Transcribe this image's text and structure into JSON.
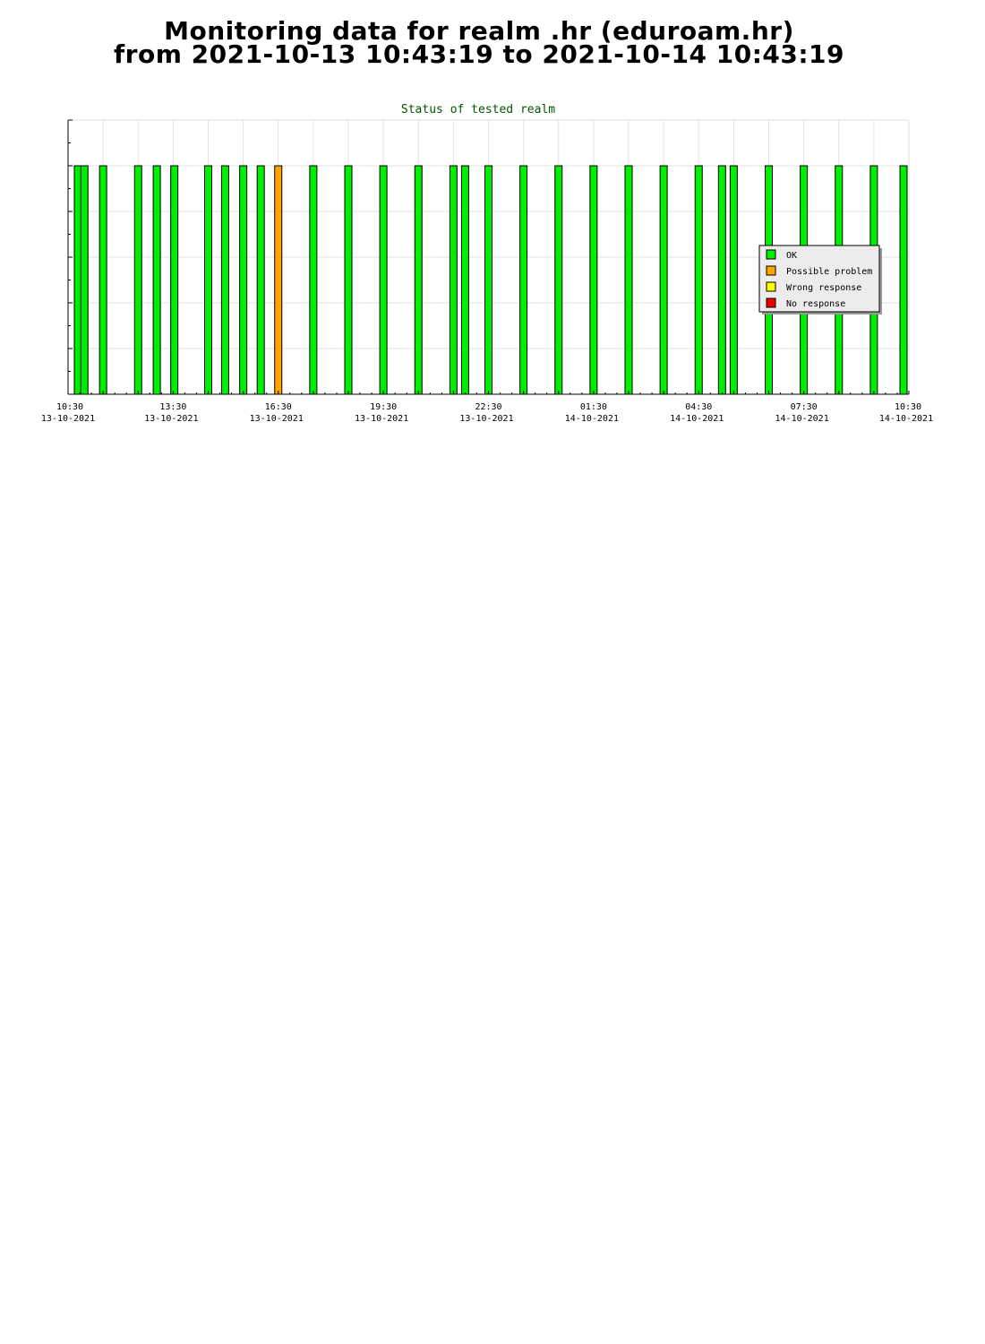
{
  "page": {
    "title_line1": "Monitoring data for realm .hr  (eduroam.hr)",
    "title_line2": "from 2021-10-13 10:43:19 to 2021-10-14 10:43:19"
  },
  "chart_data": {
    "type": "bar",
    "title": "Status of tested realm",
    "xlabel": "",
    "ylabel": "",
    "x_range": [
      "2021-10-13 10:30",
      "2021-10-14 10:30"
    ],
    "ylim": [
      0,
      1.2
    ],
    "grid": true,
    "legend_position": "right",
    "x_ticks": [
      {
        "time": "10:30",
        "date": "13-10-2021"
      },
      {
        "time": "13:30",
        "date": "13-10-2021"
      },
      {
        "time": "16:30",
        "date": "13-10-2021"
      },
      {
        "time": "19:30",
        "date": "13-10-2021"
      },
      {
        "time": "22:30",
        "date": "13-10-2021"
      },
      {
        "time": "01:30",
        "date": "14-10-2021"
      },
      {
        "time": "04:30",
        "date": "14-10-2021"
      },
      {
        "time": "07:30",
        "date": "14-10-2021"
      },
      {
        "time": "10:30",
        "date": "14-10-2021"
      }
    ],
    "legend": [
      {
        "label": "OK",
        "color": "#00ee00"
      },
      {
        "label": "Possible problem",
        "color": "#ffa500"
      },
      {
        "label": "Wrong response",
        "color": "#ffff00"
      },
      {
        "label": "No response",
        "color": "#ee0000"
      }
    ],
    "bars": [
      {
        "time": "2021-10-13 10:43",
        "status": "OK",
        "value": 1
      },
      {
        "time": "2021-10-13 10:58",
        "status": "OK",
        "value": 1
      },
      {
        "time": "2021-10-13 11:30",
        "status": "OK",
        "value": 1
      },
      {
        "time": "2021-10-13 12:30",
        "status": "OK",
        "value": 1
      },
      {
        "time": "2021-10-13 13:02",
        "status": "OK",
        "value": 1
      },
      {
        "time": "2021-10-13 13:32",
        "status": "OK",
        "value": 1
      },
      {
        "time": "2021-10-13 14:30",
        "status": "OK",
        "value": 1
      },
      {
        "time": "2021-10-13 14:59",
        "status": "OK",
        "value": 1
      },
      {
        "time": "2021-10-13 15:30",
        "status": "OK",
        "value": 1
      },
      {
        "time": "2021-10-13 16:00",
        "status": "OK",
        "value": 1
      },
      {
        "time": "2021-10-13 16:30",
        "status": "Possible problem",
        "value": 1
      },
      {
        "time": "2021-10-13 17:30",
        "status": "OK",
        "value": 1
      },
      {
        "time": "2021-10-13 18:30",
        "status": "OK",
        "value": 1
      },
      {
        "time": "2021-10-13 19:30",
        "status": "OK",
        "value": 1
      },
      {
        "time": "2021-10-13 20:30",
        "status": "OK",
        "value": 1
      },
      {
        "time": "2021-10-13 21:30",
        "status": "OK",
        "value": 1
      },
      {
        "time": "2021-10-13 21:50",
        "status": "OK",
        "value": 1
      },
      {
        "time": "2021-10-13 22:30",
        "status": "OK",
        "value": 1
      },
      {
        "time": "2021-10-13 23:30",
        "status": "OK",
        "value": 1
      },
      {
        "time": "2021-10-14 00:30",
        "status": "OK",
        "value": 1
      },
      {
        "time": "2021-10-14 01:30",
        "status": "OK",
        "value": 1
      },
      {
        "time": "2021-10-14 02:30",
        "status": "OK",
        "value": 1
      },
      {
        "time": "2021-10-14 03:30",
        "status": "OK",
        "value": 1
      },
      {
        "time": "2021-10-14 04:30",
        "status": "OK",
        "value": 1
      },
      {
        "time": "2021-10-14 05:10",
        "status": "OK",
        "value": 1
      },
      {
        "time": "2021-10-14 05:30",
        "status": "OK",
        "value": 1
      },
      {
        "time": "2021-10-14 06:30",
        "status": "OK",
        "value": 1
      },
      {
        "time": "2021-10-14 07:30",
        "status": "OK",
        "value": 1
      },
      {
        "time": "2021-10-14 08:30",
        "status": "OK",
        "value": 1
      },
      {
        "time": "2021-10-14 09:30",
        "status": "OK",
        "value": 1
      },
      {
        "time": "2021-10-14 10:30",
        "status": "OK",
        "value": 1
      }
    ]
  }
}
